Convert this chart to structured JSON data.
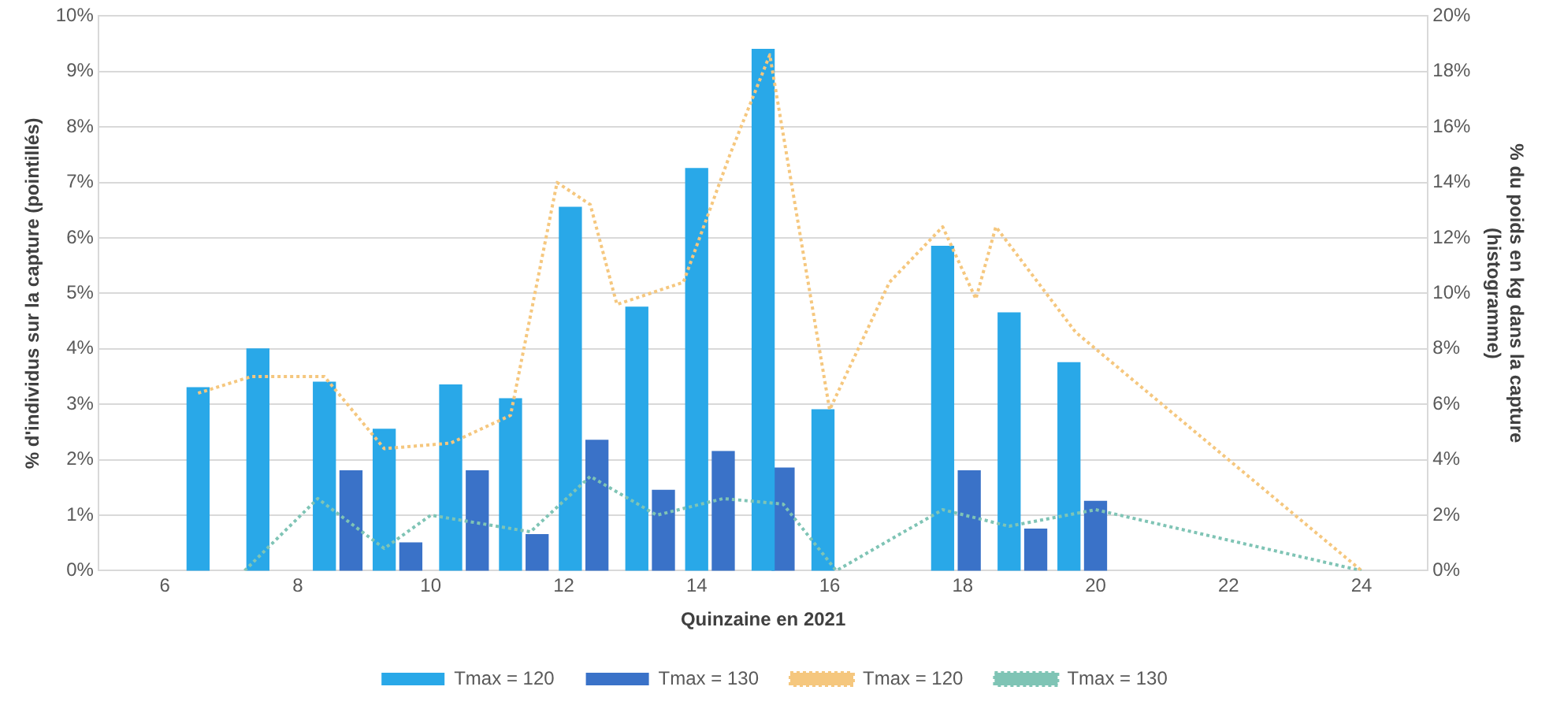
{
  "chart_data": {
    "type": "bar",
    "xlabel": "Quinzaine en 2021",
    "ylabel": "% d'individus sur la capture (pointillés)",
    "y2label": "% du poids en kg dans la capture (histogramme)",
    "xlim": [
      6,
      24
    ],
    "xticks": [
      6,
      8,
      10,
      12,
      14,
      16,
      18,
      20,
      22,
      24
    ],
    "ylim": [
      0,
      10
    ],
    "yticks": [
      {
        "value": 0,
        "label": "0%"
      },
      {
        "value": 1,
        "label": "1%"
      },
      {
        "value": 2,
        "label": "2%"
      },
      {
        "value": 3,
        "label": "3%"
      },
      {
        "value": 4,
        "label": "4%"
      },
      {
        "value": 5,
        "label": "5%"
      },
      {
        "value": 6,
        "label": "6%"
      },
      {
        "value": 7,
        "label": "7%"
      },
      {
        "value": 8,
        "label": "8%"
      },
      {
        "value": 9,
        "label": "9%"
      },
      {
        "value": 10,
        "label": "10%"
      }
    ],
    "y2lim": [
      0,
      20
    ],
    "y2ticks": [
      {
        "value": 0,
        "label": "0%"
      },
      {
        "value": 2,
        "label": "2%"
      },
      {
        "value": 4,
        "label": "4%"
      },
      {
        "value": 6,
        "label": "6%"
      },
      {
        "value": 8,
        "label": "8%"
      },
      {
        "value": 10,
        "label": "10%"
      },
      {
        "value": 12,
        "label": "12%"
      },
      {
        "value": 14,
        "label": "14%"
      },
      {
        "value": 16,
        "label": "16%"
      },
      {
        "value": 18,
        "label": "18%"
      },
      {
        "value": 20,
        "label": "20%"
      }
    ],
    "grid": "y",
    "legend": "bottom",
    "series": [
      {
        "name": "Tmax = 120",
        "axis": "y2",
        "color": "#29a8e8",
        "x": [
          6.5,
          7.4,
          8.4,
          9.3,
          10.3,
          11.2,
          12.1,
          13.1,
          14.0,
          15.0,
          15.9,
          17.7,
          18.7,
          19.6
        ],
        "values": [
          6.6,
          8.0,
          6.8,
          5.1,
          6.7,
          6.2,
          13.1,
          9.5,
          14.5,
          18.8,
          5.8,
          11.7,
          9.3,
          7.5
        ]
      },
      {
        "name": "Tmax = 130",
        "axis": "y2",
        "color": "#3a72c8",
        "x": [
          8.8,
          9.7,
          10.7,
          11.6,
          12.5,
          13.5,
          14.4,
          15.3,
          18.1,
          19.1,
          20.0
        ],
        "values": [
          3.6,
          1.0,
          3.6,
          1.3,
          4.7,
          2.9,
          4.3,
          3.7,
          3.6,
          1.5,
          2.5
        ]
      },
      {
        "name": "Tmax = 120",
        "type": "line",
        "axis": "y",
        "line_style": "dotted",
        "color": "#f5c77e",
        "x": [
          6.5,
          7.3,
          8.4,
          9.3,
          10.3,
          11.2,
          11.9,
          12.4,
          12.8,
          13.8,
          14.5,
          15.1,
          16.0,
          16.9,
          17.7,
          18.2,
          18.5,
          19.7,
          24
        ],
        "values": [
          3.2,
          3.5,
          3.5,
          2.2,
          2.3,
          2.8,
          7.0,
          6.6,
          4.8,
          5.2,
          7.5,
          9.3,
          2.9,
          5.2,
          6.2,
          4.9,
          6.2,
          4.3,
          0
        ]
      },
      {
        "name": "Tmax = 130",
        "type": "line",
        "axis": "y",
        "line_style": "dotted",
        "color": "#7fc4b5",
        "x": [
          7.2,
          8.3,
          9.3,
          10.0,
          11.5,
          12.4,
          13.4,
          14.4,
          15.3,
          16.1,
          17.7,
          18.7,
          20.0,
          24
        ],
        "values": [
          0,
          1.3,
          0.4,
          1.0,
          0.7,
          1.7,
          1.0,
          1.3,
          1.2,
          0,
          1.1,
          0.8,
          1.1,
          0
        ]
      }
    ]
  }
}
